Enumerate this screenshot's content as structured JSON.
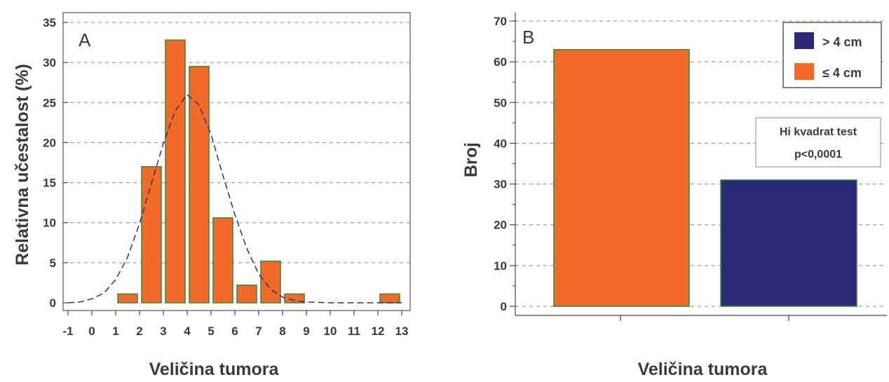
{
  "chart_data": [
    {
      "type": "bar",
      "panel_label": "A",
      "xlabel": "Veličina tumora",
      "ylabel": "Relativna učestalost (%)",
      "xlim": [
        -1,
        13
      ],
      "ylim": [
        0,
        35
      ],
      "xticks": [
        "-1",
        "0",
        "1",
        "2",
        "3",
        "4",
        "5",
        "6",
        "7",
        "8",
        "9",
        "10",
        "11",
        "12",
        "13"
      ],
      "yticks": [
        "0",
        "5",
        "10",
        "15",
        "20",
        "25",
        "30",
        "35"
      ],
      "grid": "horizontal dashed",
      "bin_width": 1,
      "bars": [
        {
          "x": 1.5,
          "value": 1.1
        },
        {
          "x": 2.5,
          "value": 17.0
        },
        {
          "x": 3.5,
          "value": 32.8
        },
        {
          "x": 4.5,
          "value": 29.5
        },
        {
          "x": 5.5,
          "value": 10.6
        },
        {
          "x": 6.5,
          "value": 2.2
        },
        {
          "x": 7.5,
          "value": 5.2
        },
        {
          "x": 8.5,
          "value": 1.1
        },
        {
          "x": 9.5,
          "value": 0
        },
        {
          "x": 10.5,
          "value": 0
        },
        {
          "x": 11.5,
          "value": 0
        },
        {
          "x": 12.5,
          "value": 1.1
        }
      ],
      "curve": {
        "style": "dashed",
        "x": [
          -1,
          -0.5,
          0,
          0.5,
          1,
          1.5,
          2,
          2.5,
          3,
          3.5,
          4,
          4.5,
          5,
          5.5,
          6,
          6.5,
          7,
          7.5,
          8,
          8.5,
          9,
          9.5,
          10,
          11,
          12,
          13
        ],
        "y": [
          0,
          0.1,
          0.5,
          1.2,
          2.9,
          5.7,
          9.9,
          14.9,
          19.9,
          24.0,
          26.0,
          24.7,
          21.0,
          15.9,
          11.0,
          6.8,
          3.6,
          1.7,
          0.7,
          0.3,
          0.1,
          0.05,
          0,
          0,
          0,
          0
        ]
      },
      "colors": {
        "bar_fill": "#f26a28",
        "bar_stroke": "#3c8a3c",
        "curve": "#2b2f80",
        "grid": "#888888"
      }
    },
    {
      "type": "bar",
      "panel_label": "B",
      "xlabel": "Veličina tumora",
      "ylabel": "Broj",
      "ylim": [
        0,
        70
      ],
      "yticks": [
        "0",
        "10",
        "20",
        "30",
        "40",
        "50",
        "60",
        "70"
      ],
      "grid": "horizontal dashed",
      "series": [
        {
          "name": "≤ 4 cm",
          "value": 63,
          "color": "#f26a28"
        },
        {
          "name": "> 4 cm",
          "value": 31,
          "color": "#2b2a78"
        }
      ],
      "legend": {
        "position": "top-right",
        "entries": [
          {
            "label": "> 4 cm",
            "color": "#2b2a78"
          },
          {
            "label": "≤ 4 cm",
            "color": "#f26a28"
          }
        ]
      },
      "annotation": {
        "line1": "Hi kvadrat test",
        "line2": "p<0,0001"
      },
      "colors": {
        "bar_stroke": "#3c8a3c",
        "grid": "#888888"
      }
    }
  ]
}
